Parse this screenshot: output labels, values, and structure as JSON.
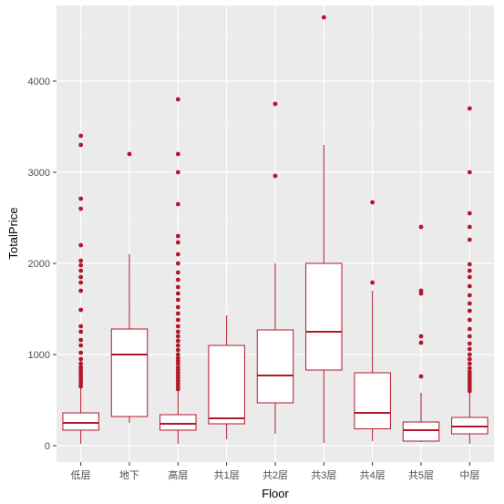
{
  "chart_data": {
    "type": "boxplot",
    "xlabel": "Floor",
    "ylabel": "TotalPrice",
    "ylim": [
      -180,
      4830
    ],
    "yticks": [
      0,
      1000,
      2000,
      3000,
      4000
    ],
    "grid": true,
    "background": "#EBEBEB",
    "box_color": "#B2182B",
    "categories": [
      "低层",
      "地下",
      "高层",
      "共1层",
      "共2层",
      "共3层",
      "共4层",
      "共5层",
      "中层"
    ],
    "boxes": [
      {
        "category": "低层",
        "whisker_low": 20,
        "q1": 170,
        "median": 250,
        "q3": 360,
        "whisker_high": 630,
        "outliers": [
          650,
          680,
          710,
          740,
          770,
          800,
          830,
          860,
          900,
          950,
          1020,
          1100,
          1160,
          1250,
          1310,
          1490,
          1700,
          1790,
          1850,
          1920,
          1980,
          2030,
          2200,
          2600,
          2710,
          3300,
          3400
        ]
      },
      {
        "category": "地下",
        "whisker_low": 250,
        "q1": 320,
        "median": 1000,
        "q3": 1280,
        "whisker_high": 2100,
        "outliers": [
          3200
        ]
      },
      {
        "category": "高层",
        "whisker_low": 20,
        "q1": 170,
        "median": 240,
        "q3": 340,
        "whisker_high": 600,
        "outliers": [
          620,
          650,
          680,
          710,
          740,
          770,
          800,
          830,
          860,
          900,
          930,
          960,
          1000,
          1050,
          1100,
          1150,
          1200,
          1250,
          1310,
          1380,
          1450,
          1520,
          1600,
          1670,
          1740,
          1820,
          1900,
          2000,
          2100,
          2230,
          2300,
          2650,
          3000,
          3200,
          3800
        ]
      },
      {
        "category": "共1层",
        "whisker_low": 70,
        "q1": 240,
        "median": 300,
        "q3": 1100,
        "whisker_high": 1430,
        "outliers": []
      },
      {
        "category": "共2层",
        "whisker_low": 130,
        "q1": 470,
        "median": 770,
        "q3": 1270,
        "whisker_high": 2000,
        "outliers": [
          2960,
          3750
        ]
      },
      {
        "category": "共3层",
        "whisker_low": 30,
        "q1": 830,
        "median": 1250,
        "q3": 2000,
        "whisker_high": 3300,
        "outliers": [
          4700
        ]
      },
      {
        "category": "共4层",
        "whisker_low": 50,
        "q1": 185,
        "median": 360,
        "q3": 800,
        "whisker_high": 1700,
        "outliers": [
          1790,
          2670
        ]
      },
      {
        "category": "共5层",
        "whisker_low": 40,
        "q1": 50,
        "median": 170,
        "q3": 260,
        "whisker_high": 580,
        "outliers": [
          760,
          1130,
          1200,
          1670,
          1700,
          2400
        ]
      },
      {
        "category": "中层",
        "whisker_low": 20,
        "q1": 130,
        "median": 210,
        "q3": 310,
        "whisker_high": 580,
        "outliers": [
          600,
          630,
          660,
          690,
          720,
          750,
          780,
          810,
          850,
          900,
          950,
          1000,
          1060,
          1120,
          1200,
          1280,
          1380,
          1480,
          1560,
          1650,
          1750,
          1850,
          1920,
          1990,
          2260,
          2400,
          2550,
          3000,
          3700
        ]
      }
    ]
  }
}
